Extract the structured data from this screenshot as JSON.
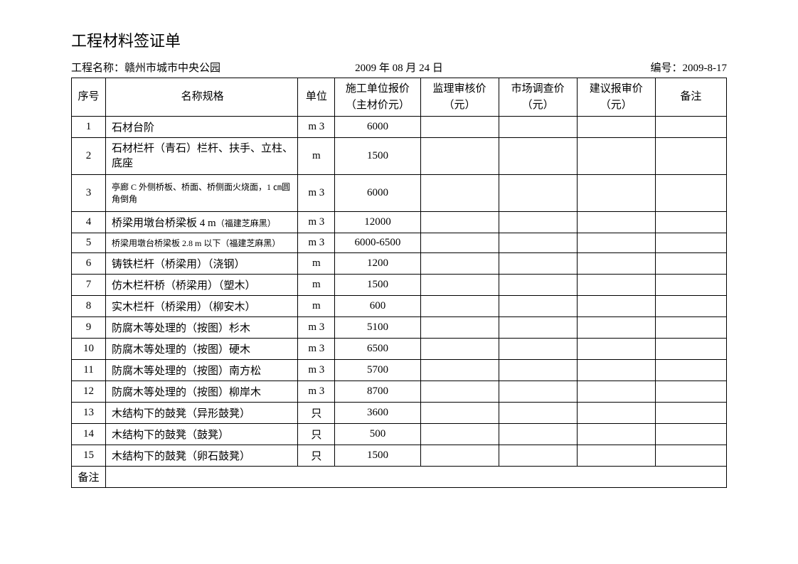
{
  "title": "工程材料签证单",
  "header": {
    "projectLabel": "工程名称：",
    "projectName": "赣州市城市中央公园",
    "date": "2009 年 08 月 24 日",
    "codeLabel": "编号：",
    "code": "2009-8-17"
  },
  "columns": {
    "seq": "序号",
    "name": "名称规格",
    "unit": "单位",
    "priceL1": "施工单位报价",
    "priceL2": "（主材价元）",
    "auditL1": "监理审核价",
    "auditL2": "（元）",
    "marketL1": "市场调查价",
    "marketL2": "（元）",
    "suggestL1": "建议报审价",
    "suggestL2": "（元）",
    "remark": "备注"
  },
  "rows": [
    {
      "seq": "1",
      "name": "石材台阶",
      "unit": "m 3",
      "price": "6000",
      "audit": "",
      "market": "",
      "suggest": "",
      "remark": ""
    },
    {
      "seq": "2",
      "name": "石材栏杆（青石）栏杆、扶手、立柱、底座",
      "unit": "m",
      "price": "1500",
      "audit": "",
      "market": "",
      "suggest": "",
      "remark": ""
    },
    {
      "seq": "3",
      "name": "亭廊 C 外侧桥板、桥面、桥侧面火烧面，1 ㎝圆角倒角",
      "unit": "m 3",
      "price": "6000",
      "audit": "",
      "market": "",
      "suggest": "",
      "remark": ""
    },
    {
      "seq": "4",
      "name": "桥梁用墩台桥梁板 4 m（福建芝麻黑）",
      "unit": "m 3",
      "price": "12000",
      "audit": "",
      "market": "",
      "suggest": "",
      "remark": ""
    },
    {
      "seq": "5",
      "name": "桥梁用墩台桥梁板 2.8 m 以下（福建芝麻黑）",
      "unit": "m 3",
      "price": "6000-6500",
      "audit": "",
      "market": "",
      "suggest": "",
      "remark": ""
    },
    {
      "seq": "6",
      "name": "铸铁栏杆（桥梁用）（浇钢）",
      "unit": "m",
      "price": "1200",
      "audit": "",
      "market": "",
      "suggest": "",
      "remark": ""
    },
    {
      "seq": "7",
      "name": "仿木栏杆桥（桥梁用）（塑木）",
      "unit": "m",
      "price": "1500",
      "audit": "",
      "market": "",
      "suggest": "",
      "remark": ""
    },
    {
      "seq": "8",
      "name": "实木栏杆（桥梁用）（柳安木）",
      "unit": "m",
      "price": "600",
      "audit": "",
      "market": "",
      "suggest": "",
      "remark": ""
    },
    {
      "seq": "9",
      "name": "防腐木等处理的（按图）杉木",
      "unit": "m 3",
      "price": "5100",
      "audit": "",
      "market": "",
      "suggest": "",
      "remark": ""
    },
    {
      "seq": "10",
      "name": "防腐木等处理的（按图）硬木",
      "unit": "m 3",
      "price": "6500",
      "audit": "",
      "market": "",
      "suggest": "",
      "remark": ""
    },
    {
      "seq": "11",
      "name": "防腐木等处理的（按图）南方松",
      "unit": "m 3",
      "price": "5700",
      "audit": "",
      "market": "",
      "suggest": "",
      "remark": ""
    },
    {
      "seq": "12",
      "name": "防腐木等处理的（按图）柳岸木",
      "unit": "m 3",
      "price": "8700",
      "audit": "",
      "market": "",
      "suggest": "",
      "remark": ""
    },
    {
      "seq": "13",
      "name": "木结构下的鼓凳（异形鼓凳）",
      "unit": "只",
      "price": "3600",
      "audit": "",
      "market": "",
      "suggest": "",
      "remark": ""
    },
    {
      "seq": "14",
      "name": "木结构下的鼓凳（鼓凳）",
      "unit": "只",
      "price": "500",
      "audit": "",
      "market": "",
      "suggest": "",
      "remark": ""
    },
    {
      "seq": "15",
      "name": "木结构下的鼓凳（卵石鼓凳）",
      "unit": "只",
      "price": "1500",
      "audit": "",
      "market": "",
      "suggest": "",
      "remark": ""
    }
  ],
  "footerLabel": "备注",
  "styling": {
    "smallTextRows": [
      2,
      4
    ],
    "mixedTextRows": [
      3
    ],
    "multiLineRows": [
      1,
      2
    ],
    "rowHeights": {
      "default": 28,
      "tall": 52
    }
  }
}
